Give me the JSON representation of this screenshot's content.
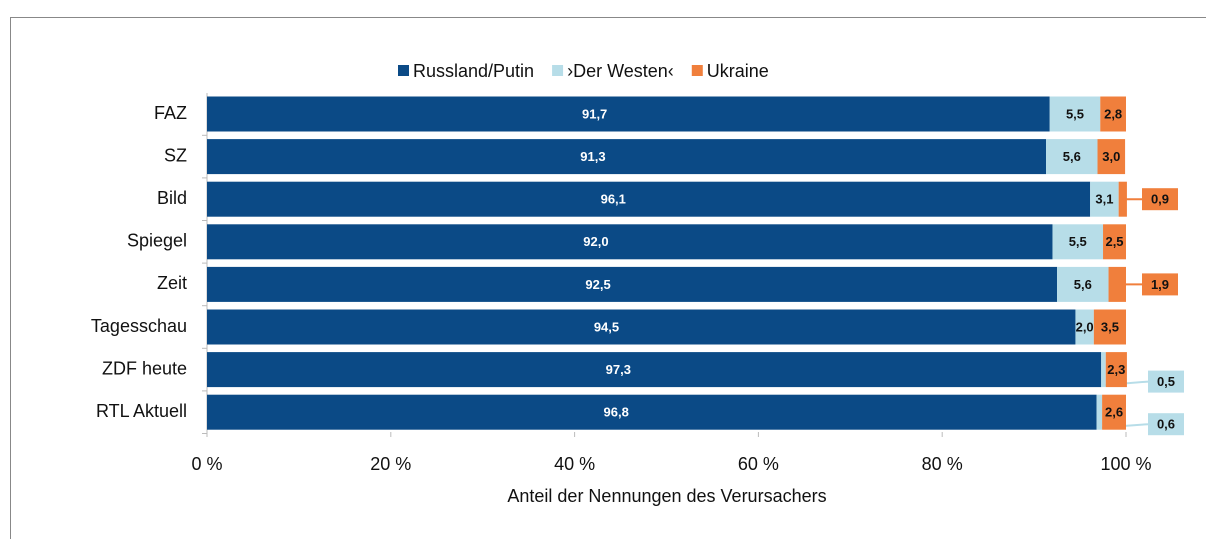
{
  "chart_data": {
    "type": "stacked_barh",
    "xlabel": "Anteil der Nennungen des Verursachers",
    "categories": [
      "FAZ",
      "SZ",
      "Bild",
      "Spiegel",
      "Zeit",
      "Tagesschau",
      "ZDF heute",
      "RTL Aktuell"
    ],
    "series": [
      {
        "name": "Russland/Putin",
        "color": "#0b4a86",
        "values": [
          91.7,
          91.3,
          96.1,
          92.0,
          92.5,
          94.5,
          97.3,
          96.8
        ],
        "value_labels": [
          "91,7",
          "91,3",
          "96,1",
          "92,0",
          "92,5",
          "94,5",
          "97,3",
          "96,8"
        ]
      },
      {
        "name": "›Der Westen‹",
        "color": "#b7dde8",
        "values": [
          5.5,
          5.6,
          3.1,
          5.5,
          5.6,
          2.0,
          0.5,
          0.6
        ],
        "value_labels": [
          "5,5",
          "5,6",
          "3,1",
          "5,5",
          "5,6",
          "2,0",
          "0,5",
          "0,6"
        ]
      },
      {
        "name": "Ukraine",
        "color": "#f07f3c",
        "values": [
          2.8,
          3.0,
          0.9,
          2.5,
          1.9,
          3.5,
          2.3,
          2.6
        ],
        "value_labels": [
          "2,8",
          "3,0",
          "0,9",
          "2,5",
          "1,9",
          "3,5",
          "2,3",
          "2,6"
        ]
      }
    ],
    "xlim": [
      0,
      100
    ],
    "xticks": [
      {
        "value": 0,
        "label": "0 %"
      },
      {
        "value": 20,
        "label": "20 %"
      },
      {
        "value": 40,
        "label": "40 %"
      },
      {
        "value": 60,
        "label": "60 %"
      },
      {
        "value": 80,
        "label": "80 %"
      },
      {
        "value": 100,
        "label": "100 %"
      }
    ],
    "legend": "top"
  }
}
